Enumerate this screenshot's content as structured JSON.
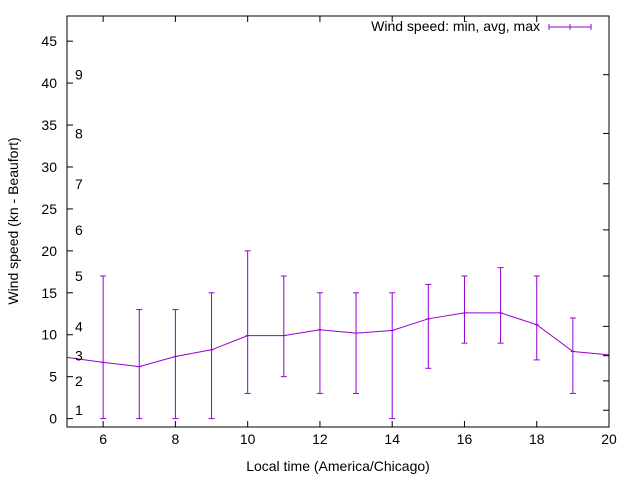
{
  "chart_data": {
    "type": "line",
    "title": "",
    "xlabel": "Local time (America/Chicago)",
    "ylabel": "Wind speed (kn - Beaufort)",
    "xlim": [
      5,
      20
    ],
    "ylim": [
      -1,
      48
    ],
    "xticks": [
      6,
      8,
      10,
      12,
      14,
      16,
      18,
      20
    ],
    "yticks": [
      0,
      5,
      10,
      15,
      20,
      25,
      30,
      35,
      40,
      45
    ],
    "grid": false,
    "legend": {
      "position": "top-right",
      "entries": [
        "Wind speed: min, avg, max"
      ]
    },
    "beaufort_scale": {
      "labels": [
        "1",
        "2",
        "3",
        "4",
        "5",
        "6",
        "7",
        "8",
        "9"
      ],
      "values": [
        1,
        4.5,
        7.5,
        11,
        17,
        22.5,
        28,
        34,
        41
      ]
    },
    "series": [
      {
        "name": "Wind speed: min, avg, max",
        "color": "#9400d3",
        "x": [
          5,
          6,
          7,
          8,
          9,
          10,
          11,
          12,
          13,
          14,
          15,
          16,
          17,
          18,
          19,
          20
        ],
        "avg": [
          7.3,
          6.7,
          6.2,
          7.4,
          8.2,
          9.9,
          9.9,
          10.6,
          10.2,
          10.5,
          11.9,
          12.6,
          12.6,
          11.2,
          8,
          7.6
        ],
        "min": [
          null,
          0,
          0,
          0,
          0,
          3,
          5,
          3,
          3,
          0,
          6,
          9,
          9,
          7,
          3,
          null
        ],
        "max": [
          null,
          17,
          13,
          13,
          15,
          20,
          17,
          15,
          15,
          15,
          16,
          17,
          18,
          17,
          12,
          null
        ]
      }
    ]
  }
}
